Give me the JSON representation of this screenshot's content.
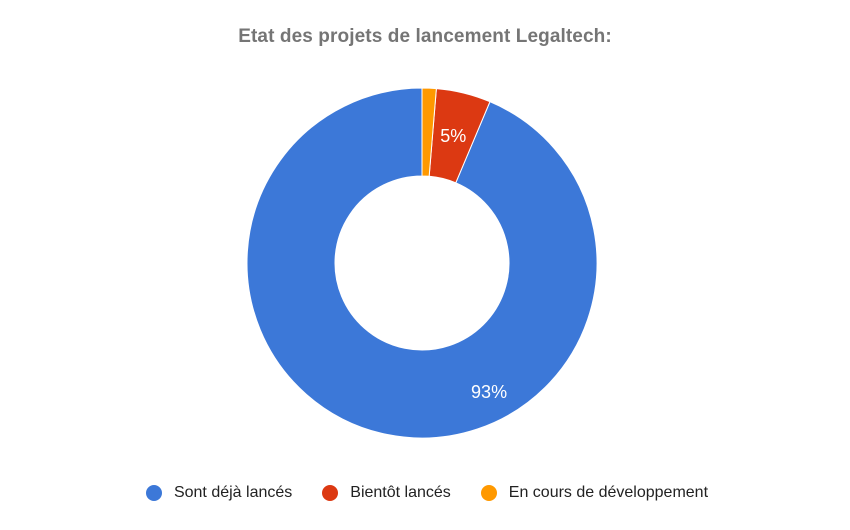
{
  "chart_data": {
    "type": "pie",
    "title": "Etat des projets de lancement Legaltech:",
    "donut": true,
    "legend_position": "bottom",
    "series": [
      {
        "name": "Sont déjà lancés",
        "value": 93,
        "label": "93%",
        "color": "#3c78d8"
      },
      {
        "name": "Bientôt lancés",
        "value": 5,
        "label": "5%",
        "color": "#dc3912"
      },
      {
        "name": "En cours de développement",
        "value": 1.3,
        "label": "",
        "color": "#ff9900"
      }
    ]
  }
}
